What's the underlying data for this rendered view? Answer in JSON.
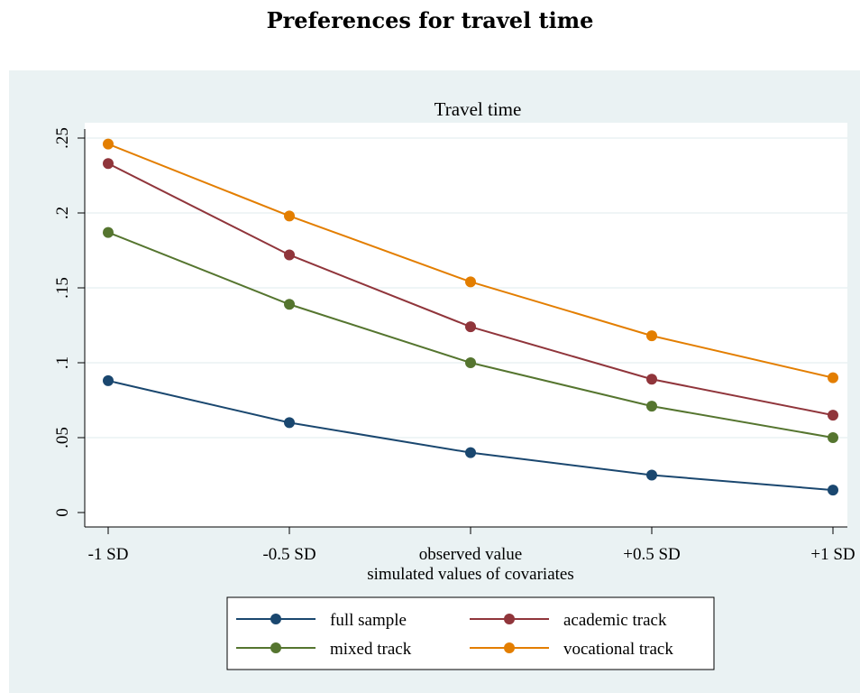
{
  "page": {
    "title": "Preferences for travel time"
  },
  "chart_data": {
    "type": "line",
    "title": "Travel time",
    "xlabel": "simulated values of covariates",
    "ylabel": "",
    "categories": [
      "-1 SD",
      "-0.5 SD",
      "observed value",
      "+0.5 SD",
      "+1 SD"
    ],
    "ylim": [
      0,
      0.25
    ],
    "yticks": [
      0,
      0.05,
      0.1,
      0.15,
      0.2,
      0.25
    ],
    "ytick_labels": [
      "0",
      ".05",
      ".1",
      ".15",
      ".2",
      ".25"
    ],
    "grid": true,
    "legend_position": "bottom",
    "series": [
      {
        "name": "full sample",
        "color": "#1a476f",
        "values": [
          0.088,
          0.06,
          0.04,
          0.025,
          0.015
        ]
      },
      {
        "name": "academic track",
        "color": "#90353b",
        "values": [
          0.233,
          0.172,
          0.124,
          0.089,
          0.065
        ]
      },
      {
        "name": "mixed track",
        "color": "#55752f",
        "values": [
          0.187,
          0.139,
          0.1,
          0.071,
          0.05
        ]
      },
      {
        "name": "vocational track",
        "color": "#e37e00",
        "values": [
          0.246,
          0.198,
          0.154,
          0.118,
          0.09
        ]
      }
    ]
  }
}
